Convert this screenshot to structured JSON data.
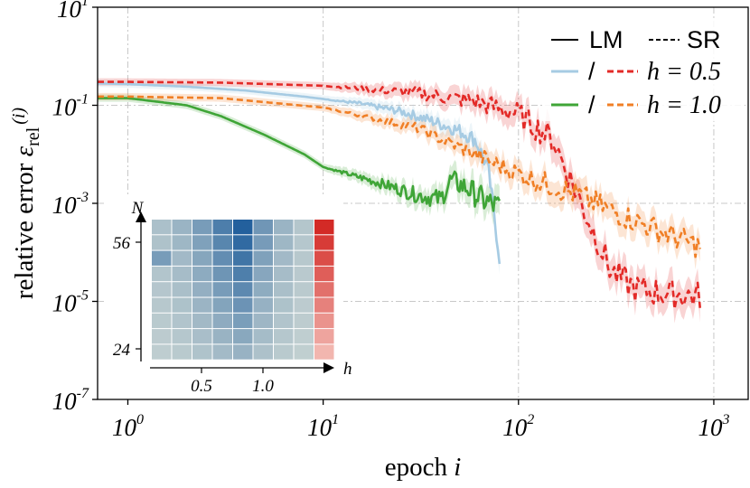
{
  "chart_data": {
    "type": "line",
    "xlabel_text": "epoch",
    "xlabel_var": "i",
    "ylabel_text": "relative error",
    "ylabel_sym": "ε",
    "ylabel_sub": "rel",
    "ylabel_arg": "(i)",
    "xscale": "log",
    "yscale": "log",
    "xlim": [
      0.7,
      1500
    ],
    "ylim": [
      1e-07,
      10
    ],
    "grid": true,
    "x_ticks": [
      {
        "base": "10",
        "exp": "0",
        "value": 1
      },
      {
        "base": "10",
        "exp": "1",
        "value": 10
      },
      {
        "base": "10",
        "exp": "2",
        "value": 100
      },
      {
        "base": "10",
        "exp": "3",
        "value": 1000
      }
    ],
    "y_ticks": [
      {
        "base": "10",
        "exp": "1",
        "value": 10
      },
      {
        "base": "10",
        "exp": "-1",
        "value": 0.1
      },
      {
        "base": "10",
        "exp": "-3",
        "value": 0.001
      },
      {
        "base": "10",
        "exp": "-5",
        "value": 1e-05
      },
      {
        "base": "10",
        "exp": "-7",
        "value": 1e-07
      }
    ],
    "legend": {
      "placement": "top-right",
      "header_lm": "LM",
      "header_sr": "SR",
      "slash": "/",
      "rows": [
        {
          "label": "h = 0.5"
        },
        {
          "label": "h = 1.0"
        }
      ]
    },
    "series": [
      {
        "method": "LM",
        "h": 0.5,
        "color": "#a6cbe3",
        "dash": "solid",
        "noise": 0.25,
        "points": [
          [
            0.7,
            0.28
          ],
          [
            1,
            0.27
          ],
          [
            2,
            0.24
          ],
          [
            4,
            0.2
          ],
          [
            8,
            0.15
          ],
          [
            15,
            0.11
          ],
          [
            25,
            0.075
          ],
          [
            35,
            0.05
          ],
          [
            45,
            0.035
          ],
          [
            50,
            0.03
          ],
          [
            60,
            0.02
          ],
          [
            70,
            0.005
          ],
          [
            80,
            8e-05
          ]
        ]
      },
      {
        "method": "LM",
        "h": 1.0,
        "color": "#3fa537",
        "dash": "solid",
        "noise": 0.4,
        "points": [
          [
            0.7,
            0.14
          ],
          [
            1,
            0.14
          ],
          [
            2,
            0.1
          ],
          [
            3,
            0.06
          ],
          [
            5,
            0.025
          ],
          [
            8,
            0.01
          ],
          [
            10,
            0.0055
          ],
          [
            15,
            0.0035
          ],
          [
            20,
            0.0025
          ],
          [
            30,
            0.0015
          ],
          [
            40,
            0.0012
          ],
          [
            45,
            0.003
          ],
          [
            55,
            0.002
          ],
          [
            65,
            0.0012
          ],
          [
            80,
            0.0008
          ]
        ]
      },
      {
        "method": "SR",
        "h": 0.5,
        "color": "#e32a27",
        "dash": "dashed",
        "noise": 0.3,
        "points": [
          [
            0.7,
            0.3
          ],
          [
            1,
            0.3
          ],
          [
            3,
            0.29
          ],
          [
            10,
            0.25
          ],
          [
            30,
            0.18
          ],
          [
            60,
            0.12
          ],
          [
            100,
            0.065
          ],
          [
            150,
            0.02
          ],
          [
            200,
            0.0015
          ],
          [
            250,
            0.0002
          ],
          [
            300,
            4e-05
          ],
          [
            400,
            1.8e-05
          ],
          [
            600,
            1.4e-05
          ],
          [
            850,
            1.3e-05
          ]
        ]
      },
      {
        "method": "SR",
        "h": 1.0,
        "color": "#f07f26",
        "dash": "dashed",
        "noise": 0.25,
        "points": [
          [
            0.7,
            0.15
          ],
          [
            1,
            0.15
          ],
          [
            3,
            0.14
          ],
          [
            10,
            0.09
          ],
          [
            30,
            0.035
          ],
          [
            60,
            0.01
          ],
          [
            100,
            0.004
          ],
          [
            200,
            0.0015
          ],
          [
            300,
            0.0007
          ],
          [
            500,
            0.0003
          ],
          [
            850,
            0.00013
          ]
        ]
      }
    ],
    "inset": {
      "type": "heatmap",
      "xlabel": "h",
      "ylabel": "N",
      "x_ticks": [
        "0.5",
        "1.0"
      ],
      "y_ticks": [
        "24",
        "56"
      ],
      "rows": 9,
      "cols": 9,
      "blue": "#1a5a9a",
      "red": "#d32a26",
      "neutral": "#c5d2d2"
    }
  }
}
